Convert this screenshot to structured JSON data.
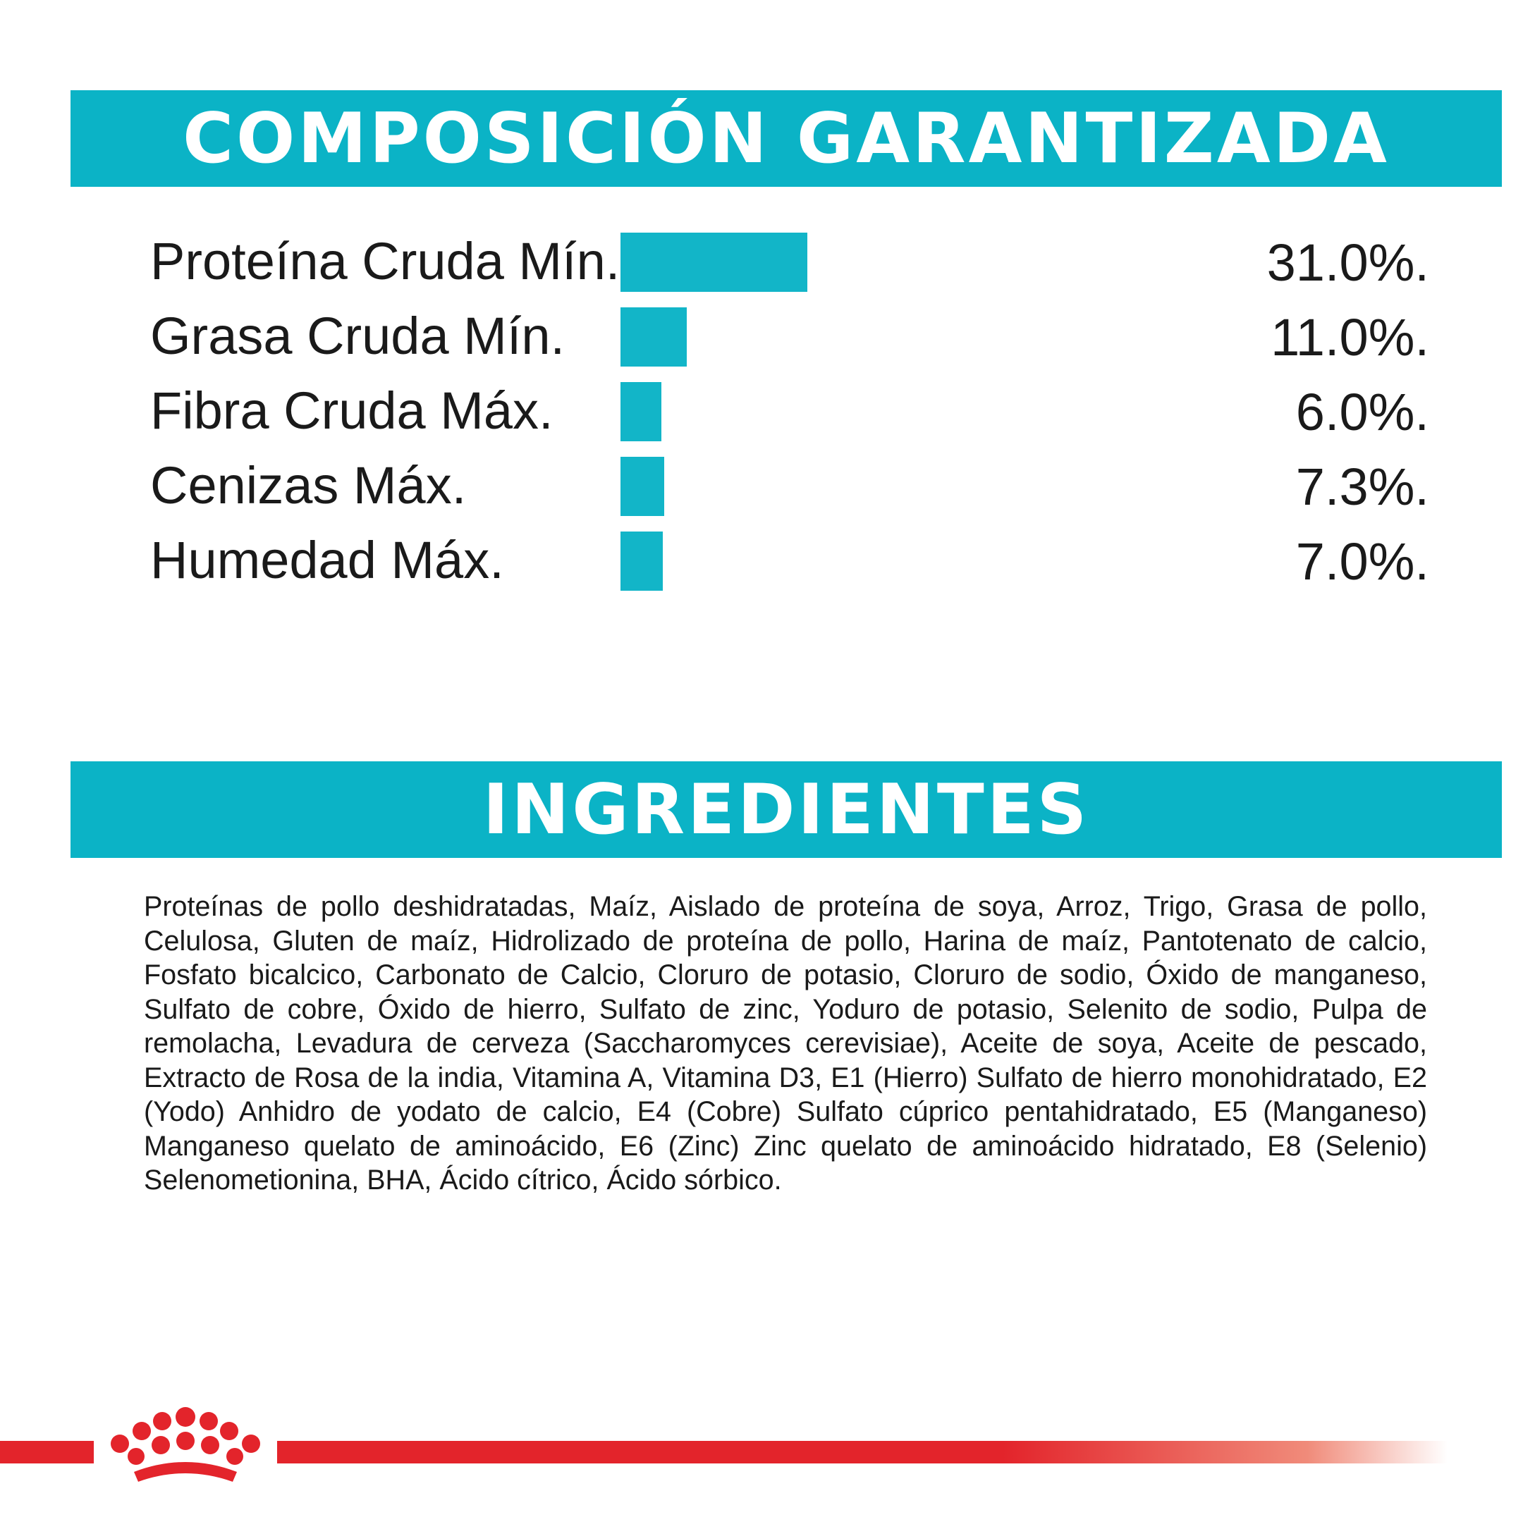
{
  "colors": {
    "accent": "#0bb3c6",
    "bar": "#12b5c8",
    "brand_red": "#e3242b"
  },
  "composition": {
    "title": "COMPOSICIÓN GARANTIZADA"
  },
  "chart_data": {
    "type": "bar",
    "orientation": "horizontal",
    "title": "COMPOSICIÓN GARANTIZADA",
    "categories": [
      "Proteína Cruda Mín.",
      "Grasa Cruda Mín.",
      "Fibra Cruda Máx.",
      "Cenizas Máx.",
      "Humedad Máx."
    ],
    "values": [
      31.0,
      11.0,
      6.0,
      7.3,
      7.0
    ],
    "value_labels": [
      "31.0%.",
      "11.0%.",
      "6.0%.",
      "7.3%.",
      "7.0%."
    ],
    "unit": "%",
    "xlim": [
      0,
      31.0
    ],
    "grid": false,
    "legend": "none"
  },
  "ingredients": {
    "title": "INGREDIENTES",
    "text": "Proteínas de pollo deshidratadas, Maíz, Aislado de proteína de soya, Arroz, Trigo, Grasa de pollo, Celulosa, Gluten de maíz, Hidrolizado de proteína de pollo, Harina de maíz, Pantotenato de calcio, Fosfato bicalcico, Carbonato de Calcio, Cloruro de potasio, Cloruro de sodio, Óxido de manganeso, Sulfato de cobre, Óxido de hierro, Sulfato de zinc, Yoduro de potasio, Selenito de sodio, Pulpa de remolacha, Levadura de cerveza (Saccharomyces cerevisiae), Aceite de soya, Aceite de pescado, Extracto de Rosa de la india, Vitamina A, Vitamina D3, E1 (Hierro) Sulfato de hierro monohidratado, E2 (Yodo) Anhidro de yodato de calcio, E4 (Cobre) Sulfato cúprico pentahidratado, E5 (Manganeso) Manganeso quelato de aminoácido, E6 (Zinc) Zinc quelato de aminoácido hidratado, E8 (Selenio) Selenometionina, BHA, Ácido cítrico, Ácido sórbico."
  },
  "footer": {
    "logo_icon": "crown-logo-icon"
  }
}
